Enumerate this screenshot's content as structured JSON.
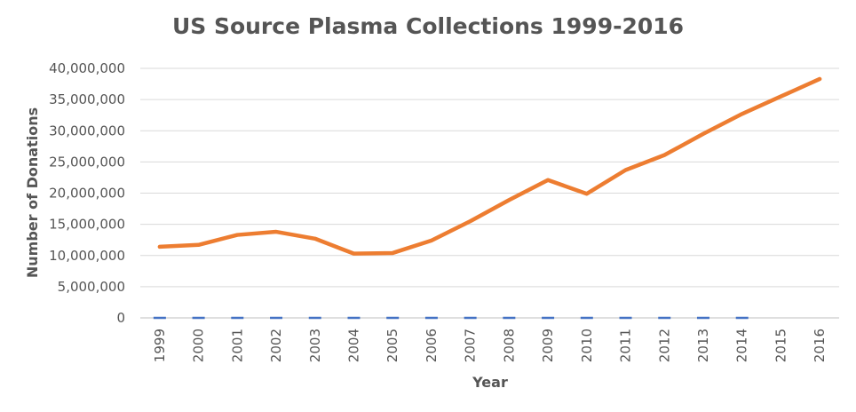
{
  "chart_data": {
    "type": "line",
    "title": "US Source Plasma Collections 1999-2016",
    "xlabel": "Year",
    "ylabel": "Number of Donations",
    "categories": [
      "1999",
      "2000",
      "2001",
      "2002",
      "2003",
      "2004",
      "2005",
      "2006",
      "2007",
      "2008",
      "2009",
      "2010",
      "2011",
      "2012",
      "2013",
      "2014",
      "2015",
      "2016"
    ],
    "y_ticks": [
      "0",
      "5,000,000",
      "10,000,000",
      "15,000,000",
      "20,000,000",
      "25,000,000",
      "30,000,000",
      "35,000,000",
      "40,000,000"
    ],
    "ylim": [
      0,
      40000000
    ],
    "grid": true,
    "series": [
      {
        "color": "#ED7D31",
        "values": [
          11400000,
          11700000,
          13300000,
          13800000,
          12700000,
          10300000,
          10400000,
          12400000,
          15500000,
          18900000,
          22100000,
          19900000,
          23700000,
          26100000,
          29500000,
          32700000,
          35500000,
          38300000
        ]
      },
      {
        "color": "#4472C4",
        "values": [
          0,
          0,
          0,
          0,
          0,
          0,
          0,
          0,
          0,
          0,
          0,
          0,
          0,
          0,
          0,
          0,
          null,
          null
        ]
      }
    ]
  }
}
